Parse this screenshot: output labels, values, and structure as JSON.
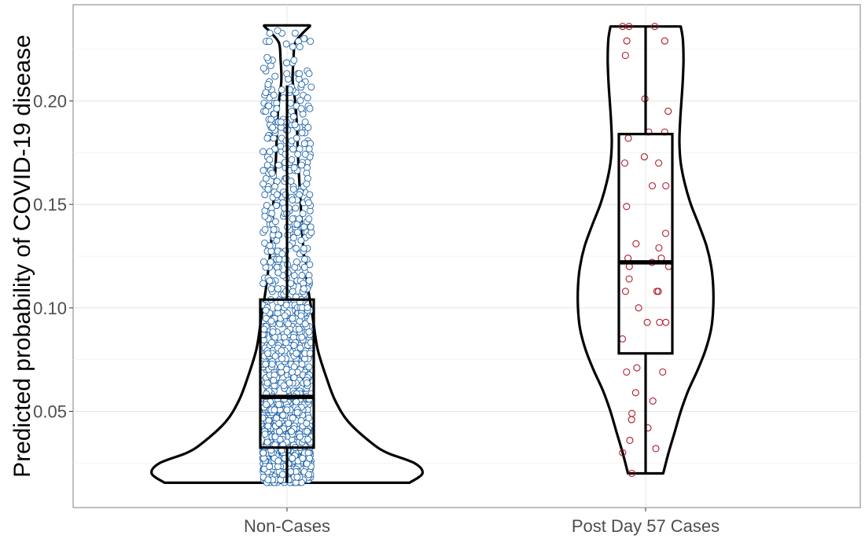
{
  "chart_data": {
    "type": "violin",
    "title": "",
    "xlabel": "",
    "ylabel": "Predicted probability of COVID-19 disease",
    "ylim": [
      0.0035,
      0.2465
    ],
    "yticks": [
      0.05,
      0.1,
      0.15,
      0.2
    ],
    "ytick_labels": [
      "0.05",
      "0.10",
      "0.15",
      "0.20"
    ],
    "grid": true,
    "categories": [
      "Non-Cases",
      "Post Day 57 Cases"
    ],
    "groups": [
      {
        "name": "Non-Cases",
        "point_color": "#2166ac",
        "box": {
          "q1": 0.0325,
          "median": 0.057,
          "q3": 0.104,
          "whisker_low": 0.0155,
          "whisker_high": 0.2075
        },
        "violin_range": [
          0.0155,
          0.2365
        ],
        "density_profile": [
          [
            0.0155,
            0.76
          ],
          [
            0.02,
            0.84
          ],
          [
            0.025,
            0.79
          ],
          [
            0.03,
            0.62
          ],
          [
            0.035,
            0.52
          ],
          [
            0.045,
            0.38
          ],
          [
            0.055,
            0.3
          ],
          [
            0.065,
            0.25
          ],
          [
            0.08,
            0.19
          ],
          [
            0.095,
            0.16
          ],
          [
            0.11,
            0.13
          ],
          [
            0.13,
            0.1
          ],
          [
            0.15,
            0.085
          ],
          [
            0.17,
            0.07
          ],
          [
            0.19,
            0.06
          ],
          [
            0.2,
            0.05
          ],
          [
            0.21,
            0.035
          ],
          [
            0.22,
            0.04
          ],
          [
            0.228,
            0.05
          ],
          [
            0.233,
            0.1
          ],
          [
            0.236,
            0.14
          ],
          [
            0.2365,
            0.14
          ]
        ]
      },
      {
        "name": "Post Day 57 Cases",
        "point_color": "#b2182b",
        "box": {
          "q1": 0.078,
          "median": 0.122,
          "q3": 0.184,
          "whisker_low": 0.02,
          "whisker_high": 0.236
        },
        "violin_range": [
          0.02,
          0.236
        ],
        "density_profile": [
          [
            0.02,
            0.26
          ],
          [
            0.03,
            0.34
          ],
          [
            0.04,
            0.43
          ],
          [
            0.05,
            0.52
          ],
          [
            0.06,
            0.63
          ],
          [
            0.07,
            0.77
          ],
          [
            0.08,
            0.89
          ],
          [
            0.09,
            0.97
          ],
          [
            0.1,
            1.0
          ],
          [
            0.11,
            1.0
          ],
          [
            0.12,
            0.97
          ],
          [
            0.13,
            0.9
          ],
          [
            0.14,
            0.79
          ],
          [
            0.15,
            0.67
          ],
          [
            0.16,
            0.58
          ],
          [
            0.17,
            0.52
          ],
          [
            0.18,
            0.5
          ],
          [
            0.19,
            0.51
          ],
          [
            0.2,
            0.53
          ],
          [
            0.21,
            0.55
          ],
          [
            0.22,
            0.56
          ],
          [
            0.23,
            0.55
          ],
          [
            0.236,
            0.52
          ]
        ],
        "points": [
          0.236,
          0.236,
          0.236,
          0.229,
          0.229,
          0.222,
          0.201,
          0.195,
          0.185,
          0.185,
          0.182,
          0.173,
          0.17,
          0.17,
          0.159,
          0.159,
          0.149,
          0.136,
          0.131,
          0.129,
          0.124,
          0.124,
          0.122,
          0.12,
          0.12,
          0.114,
          0.108,
          0.108,
          0.108,
          0.1,
          0.093,
          0.093,
          0.093,
          0.085,
          0.071,
          0.069,
          0.069,
          0.059,
          0.055,
          0.049,
          0.046,
          0.042,
          0.036,
          0.032,
          0.03,
          0.02
        ]
      }
    ]
  }
}
